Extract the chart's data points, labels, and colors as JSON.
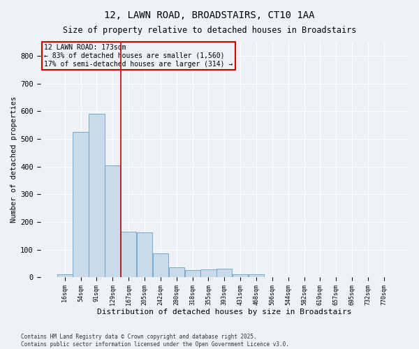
{
  "title1": "12, LAWN ROAD, BROADSTAIRS, CT10 1AA",
  "title2": "Size of property relative to detached houses in Broadstairs",
  "xlabel": "Distribution of detached houses by size in Broadstairs",
  "ylabel": "Number of detached properties",
  "categories": [
    "16sqm",
    "54sqm",
    "91sqm",
    "129sqm",
    "167sqm",
    "205sqm",
    "242sqm",
    "280sqm",
    "318sqm",
    "355sqm",
    "393sqm",
    "431sqm",
    "468sqm",
    "506sqm",
    "544sqm",
    "582sqm",
    "619sqm",
    "657sqm",
    "695sqm",
    "732sqm",
    "770sqm"
  ],
  "values": [
    10,
    525,
    590,
    405,
    165,
    163,
    85,
    37,
    25,
    28,
    30,
    10,
    10,
    0,
    0,
    0,
    0,
    0,
    0,
    0,
    0
  ],
  "bar_color": "#c9daea",
  "bar_edge_color": "#6b9fc5",
  "highlight_line_index": 3,
  "annotation_title": "12 LAWN ROAD: 173sqm",
  "annotation_line1": "← 83% of detached houses are smaller (1,560)",
  "annotation_line2": "17% of semi-detached houses are larger (314) →",
  "annotation_box_color": "#cc0000",
  "background_color": "#eef2f7",
  "grid_color": "#ffffff",
  "ylim": [
    0,
    850
  ],
  "yticks": [
    0,
    100,
    200,
    300,
    400,
    500,
    600,
    700,
    800
  ],
  "footnote1": "Contains HM Land Registry data © Crown copyright and database right 2025.",
  "footnote2": "Contains public sector information licensed under the Open Government Licence v3.0."
}
